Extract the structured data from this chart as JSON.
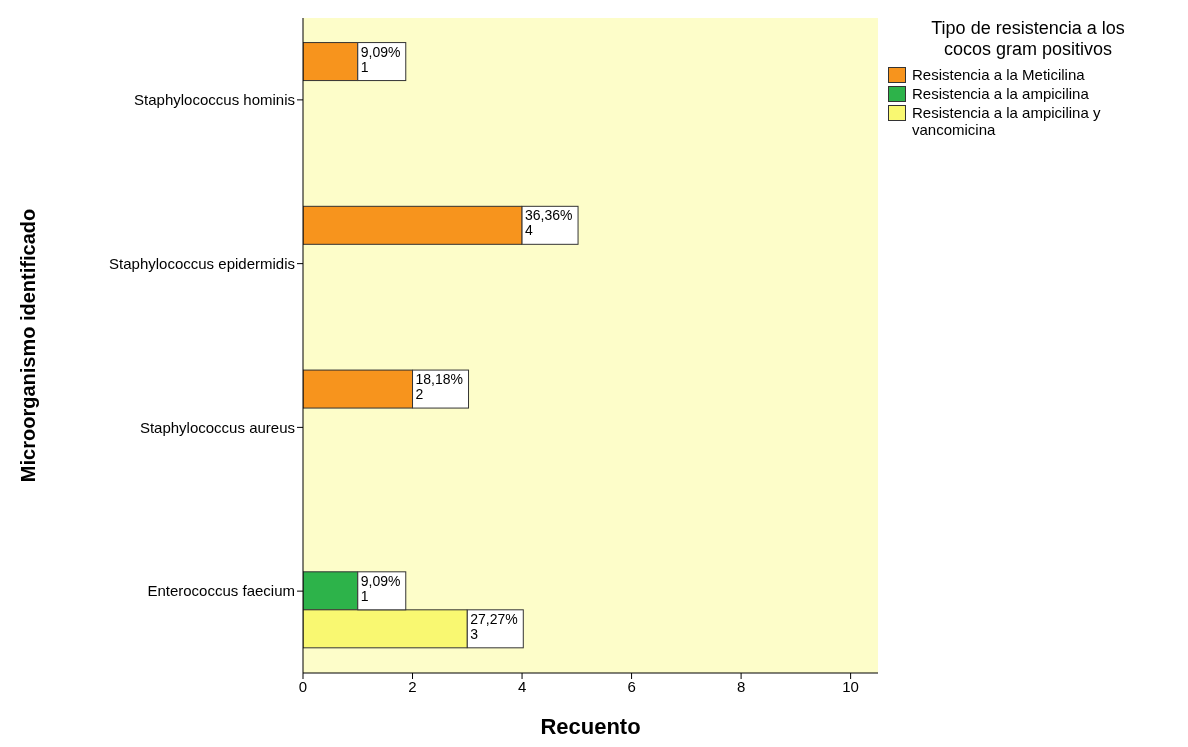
{
  "chart_data": {
    "type": "bar",
    "orientation": "horizontal",
    "xlabel": "Recuento",
    "ylabel": "Microorganismo identificado",
    "legend_title": "Tipo de resistencia a los cocos gram positivos",
    "legend": "top right",
    "categories": [
      "Staphylococcus hominis",
      "Staphylococcus epidermidis",
      "Staphylococcus aureus",
      "Enterococcus faecium"
    ],
    "series": [
      {
        "name": "Resistencia a la Meticilina",
        "color": "#f7941d",
        "values": [
          1,
          4,
          2,
          null
        ],
        "value_labels": [
          "9,09%\n1",
          "36,36%\n4",
          "18,18%\n2",
          null
        ]
      },
      {
        "name": "Resistencia a la ampicilina",
        "color": "#2db34a",
        "values": [
          null,
          null,
          null,
          1
        ],
        "value_labels": [
          null,
          null,
          null,
          "9,09%\n1"
        ]
      },
      {
        "name": "Resistencia a la ampicilina y vancomicina",
        "color": "#f9f871",
        "values": [
          null,
          null,
          null,
          3
        ],
        "value_labels": [
          null,
          null,
          null,
          "27,27%\n3"
        ]
      }
    ],
    "xlim": [
      0,
      10.5
    ],
    "xticks": [
      0,
      2,
      4,
      6,
      8,
      10
    ],
    "grid": false
  }
}
